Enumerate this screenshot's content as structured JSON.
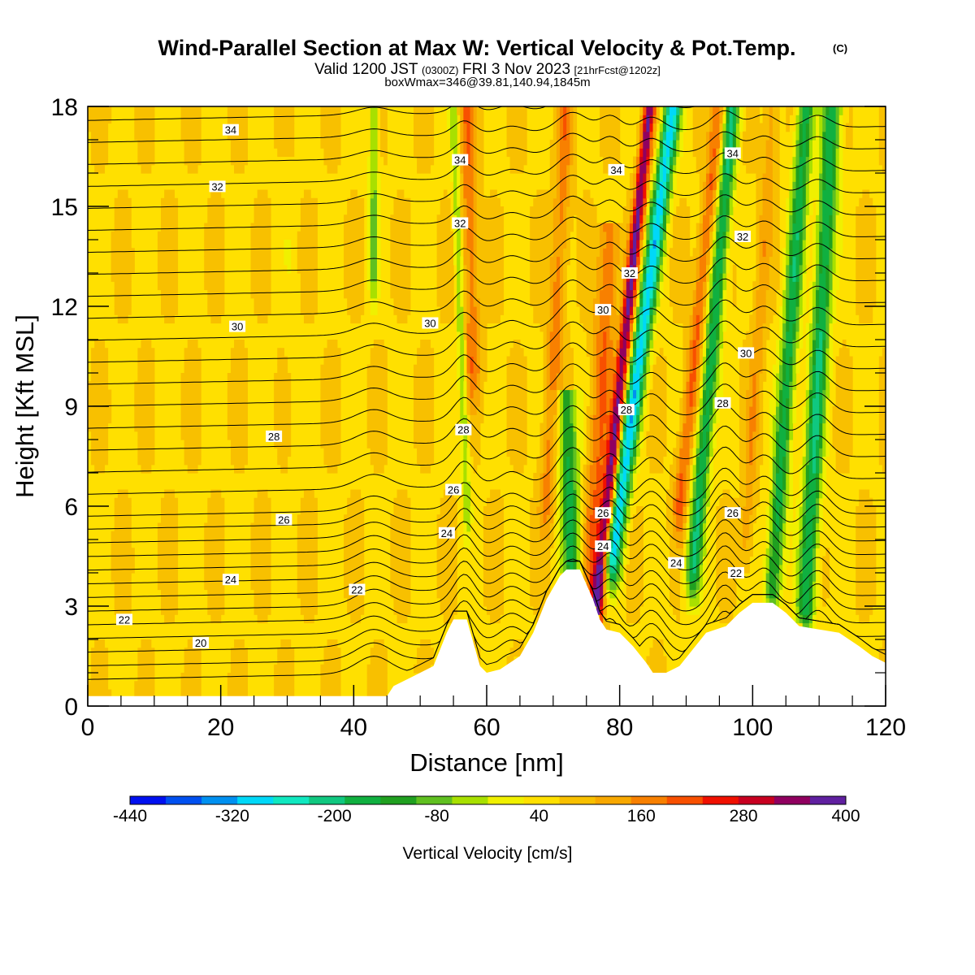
{
  "title": {
    "main": "Wind-Parallel Section at Max W: Vertical Velocity & Pot.Temp.",
    "copyright": "(C)",
    "valid_prefix": "Valid 1200 JST",
    "valid_utc": "(0300Z)",
    "valid_date": "FRI 3 Nov 2023",
    "valid_run": "[21hrFcst@1202z]",
    "box_info": "boxWmax=346@39.81,140.94,1845m"
  },
  "colors": {
    "background_fill": "#ffe000",
    "terrain": "#ffffff",
    "contour": "#000000",
    "palette": [
      "#0010f0",
      "#0050f0",
      "#0090f0",
      "#00d8f8",
      "#10e8c0",
      "#10c880",
      "#10b040",
      "#20a020",
      "#60c020",
      "#a8e000",
      "#f0f000",
      "#ffe000",
      "#f8c000",
      "#f8a800",
      "#f88000",
      "#f85000",
      "#f01000",
      "#c80020",
      "#900060",
      "#6020a0"
    ]
  },
  "chart_data": {
    "type": "heatmap",
    "xlabel": "Distance [nm]",
    "ylabel": "Height [Kft MSL]",
    "xlim": [
      0,
      120
    ],
    "ylim": [
      0,
      18
    ],
    "xticks": [
      0,
      20,
      40,
      60,
      80,
      100,
      120
    ],
    "yticks": [
      0,
      3,
      6,
      9,
      12,
      15,
      18
    ],
    "colorbar": {
      "title": "Vertical Velocity [cm/s]",
      "min": -440,
      "max": 400,
      "step": 40,
      "tick_labels": [
        "-440",
        "-320",
        "-200",
        "-80",
        "40",
        "160",
        "280",
        "400"
      ]
    },
    "terrain_profile": [
      [
        0,
        0.3
      ],
      [
        45,
        0.3
      ],
      [
        46,
        0.6
      ],
      [
        49,
        0.9
      ],
      [
        52,
        1.2
      ],
      [
        54,
        2.2
      ],
      [
        55,
        2.6
      ],
      [
        57,
        2.6
      ],
      [
        59,
        1.2
      ],
      [
        60,
        1.0
      ],
      [
        62,
        1.1
      ],
      [
        65,
        1.5
      ],
      [
        67,
        2.2
      ],
      [
        69,
        3.2
      ],
      [
        71,
        3.9
      ],
      [
        72,
        4.1
      ],
      [
        74,
        4.1
      ],
      [
        76,
        3.2
      ],
      [
        77,
        2.6
      ],
      [
        78,
        2.3
      ],
      [
        80,
        2.2
      ],
      [
        82,
        1.8
      ],
      [
        84,
        1.3
      ],
      [
        85,
        1.0
      ],
      [
        87,
        1.0
      ],
      [
        89,
        1.2
      ],
      [
        91,
        1.7
      ],
      [
        93,
        2.2
      ],
      [
        96,
        2.4
      ],
      [
        98,
        2.8
      ],
      [
        100,
        3.1
      ],
      [
        103,
        3.1
      ],
      [
        105,
        2.8
      ],
      [
        107,
        2.4
      ],
      [
        110,
        2.3
      ],
      [
        113,
        2.2
      ],
      [
        116,
        1.8
      ],
      [
        118,
        1.5
      ],
      [
        120,
        1.3
      ]
    ],
    "vertical_velocity_features": [
      {
        "kind": "updraft",
        "x_bottom": 76.5,
        "x_top": 84.5,
        "y_bottom": 2.8,
        "y_top": 18,
        "half_width_nm": 0.9,
        "value": 320
      },
      {
        "kind": "downdraft",
        "x_bottom": 79,
        "x_top": 88,
        "y_bottom": 4.5,
        "y_top": 18,
        "half_width_nm": 1.3,
        "value": -300
      },
      {
        "kind": "updraft",
        "x_bottom": 75.5,
        "x_top": 78.5,
        "y_bottom": 3.0,
        "y_top": 14,
        "half_width_nm": 1.6,
        "value": 160
      },
      {
        "kind": "updraft",
        "x_bottom": 89,
        "x_top": 95,
        "y_bottom": 6,
        "y_top": 18,
        "half_width_nm": 1.1,
        "value": 170
      },
      {
        "kind": "downdraft",
        "x_bottom": 91,
        "x_top": 97,
        "y_bottom": 4,
        "y_top": 18,
        "half_width_nm": 1.2,
        "value": -200
      },
      {
        "kind": "updraft",
        "x_bottom": 99,
        "x_top": 103,
        "y_bottom": 5,
        "y_top": 18,
        "half_width_nm": 1.0,
        "value": 110
      },
      {
        "kind": "downdraft",
        "x_bottom": 103,
        "x_top": 108,
        "y_bottom": 3.5,
        "y_top": 18,
        "half_width_nm": 1.3,
        "value": -180
      },
      {
        "kind": "downdraft",
        "x_bottom": 108,
        "x_top": 112,
        "y_bottom": 3.0,
        "y_top": 18,
        "half_width_nm": 1.4,
        "value": -200
      },
      {
        "kind": "downdraft",
        "x_bottom": 73,
        "x_top": 72,
        "y_bottom": 3.5,
        "y_top": 9,
        "half_width_nm": 1.5,
        "value": -170
      },
      {
        "kind": "updraft",
        "x_bottom": 69,
        "x_top": 72,
        "y_bottom": 6,
        "y_top": 18,
        "half_width_nm": 1.2,
        "value": 140
      },
      {
        "kind": "updraft",
        "x_bottom": 58,
        "x_top": 57,
        "y_bottom": 10,
        "y_top": 18,
        "half_width_nm": 1.2,
        "value": 150
      },
      {
        "kind": "downdraft",
        "x_bottom": 57,
        "x_top": 55,
        "y_bottom": 6,
        "y_top": 18,
        "half_width_nm": 0.6,
        "value": -80
      },
      {
        "kind": "downdraft",
        "x_bottom": 43,
        "x_top": 43,
        "y_bottom": 13,
        "y_top": 18,
        "half_width_nm": 0.7,
        "value": -90
      },
      {
        "kind": "downdraft",
        "x_bottom": 31,
        "x_top": 30,
        "y_bottom": 8,
        "y_top": 16,
        "half_width_nm": 1.0,
        "value": 20
      }
    ],
    "potential_temperature_levels": [
      20,
      20.5,
      21,
      21.5,
      22,
      22.5,
      23,
      23.5,
      24,
      24.5,
      25,
      25.5,
      26,
      26.5,
      27,
      27.5,
      28,
      28.5,
      29,
      29.5,
      30,
      30.5,
      31,
      31.5,
      32,
      32.5,
      33,
      33.5,
      34,
      34.5,
      35
    ],
    "potential_temperature_labels": [
      {
        "value": "34",
        "x": 21.5,
        "y": 17.3
      },
      {
        "value": "34",
        "x": 56,
        "y": 16.4
      },
      {
        "value": "34",
        "x": 79.5,
        "y": 16.1
      },
      {
        "value": "34",
        "x": 97,
        "y": 16.6
      },
      {
        "value": "32",
        "x": 19.5,
        "y": 15.6
      },
      {
        "value": "32",
        "x": 56,
        "y": 14.5
      },
      {
        "value": "32",
        "x": 81.5,
        "y": 13.0
      },
      {
        "value": "32",
        "x": 98.5,
        "y": 14.1
      },
      {
        "value": "30",
        "x": 22.5,
        "y": 11.4
      },
      {
        "value": "30",
        "x": 51.5,
        "y": 11.5
      },
      {
        "value": "30",
        "x": 77.5,
        "y": 11.9
      },
      {
        "value": "30",
        "x": 99,
        "y": 10.6
      },
      {
        "value": "28",
        "x": 28,
        "y": 8.1
      },
      {
        "value": "28",
        "x": 56.5,
        "y": 8.3
      },
      {
        "value": "28",
        "x": 81,
        "y": 8.9
      },
      {
        "value": "28",
        "x": 95.5,
        "y": 9.1
      },
      {
        "value": "26",
        "x": 29.5,
        "y": 5.6
      },
      {
        "value": "26",
        "x": 55,
        "y": 6.5
      },
      {
        "value": "26",
        "x": 77.5,
        "y": 5.8
      },
      {
        "value": "26",
        "x": 97,
        "y": 5.8
      },
      {
        "value": "24",
        "x": 21.5,
        "y": 3.8
      },
      {
        "value": "24",
        "x": 54,
        "y": 5.2
      },
      {
        "value": "24",
        "x": 77.5,
        "y": 4.8
      },
      {
        "value": "24",
        "x": 88.5,
        "y": 4.3
      },
      {
        "value": "22",
        "x": 5.5,
        "y": 2.6
      },
      {
        "value": "22",
        "x": 40.5,
        "y": 3.5
      },
      {
        "value": "22",
        "x": 97.5,
        "y": 4.0
      },
      {
        "value": "20",
        "x": 17,
        "y": 1.9
      }
    ]
  }
}
